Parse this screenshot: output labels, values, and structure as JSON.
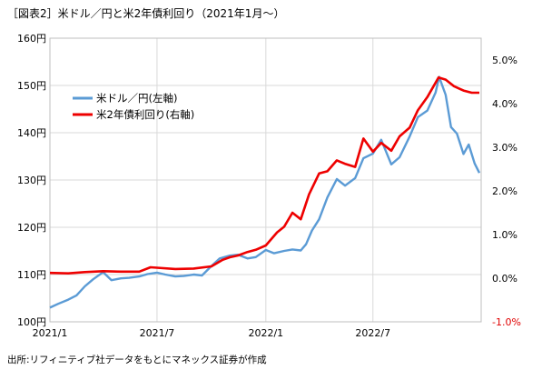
{
  "figure": {
    "title": "［図表2］米ドル／円と米2年債利回り（2021年1月～）",
    "source": "出所:リフィニティブ社データをもとにマネックス証券が作成"
  },
  "chart_data": {
    "type": "line",
    "x_tick_labels": [
      "2021/1",
      "2021/7",
      "2022/1",
      "2022/7"
    ],
    "x_tick_dates": [
      "2021-01-01",
      "2021-07-01",
      "2022-01-01",
      "2022-07-01"
    ],
    "x_range": [
      "2021-01-01",
      "2022-12-31"
    ],
    "y_left": {
      "ylim": [
        100,
        160
      ],
      "ticks": [
        100,
        110,
        120,
        130,
        140,
        150,
        160
      ],
      "tick_labels": [
        "100円",
        "110円",
        "120円",
        "130円",
        "140円",
        "150円",
        "160円"
      ]
    },
    "y_right": {
      "ylim": [
        -1.0,
        5.5
      ],
      "ticks": [
        -1.0,
        0.0,
        1.0,
        2.0,
        3.0,
        4.0,
        5.0
      ],
      "tick_labels": [
        "-1.0%",
        "0.0%",
        "1.0%",
        "2.0%",
        "3.0%",
        "4.0%",
        "5.0%"
      ],
      "negative_color": "#e00000"
    },
    "grid": {
      "horizontal": true,
      "vertical": true,
      "color": "#d9d9d9"
    },
    "legend_position": "upper-left",
    "series": [
      {
        "name": "米ドル／円(左軸)",
        "axis": "left",
        "color": "#5b9bd5",
        "x": [
          "2021-01-01",
          "2021-01-15",
          "2021-02-01",
          "2021-02-15",
          "2021-03-01",
          "2021-03-15",
          "2021-04-01",
          "2021-04-15",
          "2021-05-01",
          "2021-05-15",
          "2021-06-01",
          "2021-06-15",
          "2021-07-01",
          "2021-07-15",
          "2021-08-01",
          "2021-08-15",
          "2021-09-01",
          "2021-09-15",
          "2021-10-01",
          "2021-10-15",
          "2021-11-01",
          "2021-11-15",
          "2021-12-01",
          "2021-12-15",
          "2022-01-01",
          "2022-01-15",
          "2022-02-01",
          "2022-02-15",
          "2022-03-01",
          "2022-03-10",
          "2022-03-20",
          "2022-04-01",
          "2022-04-15",
          "2022-05-01",
          "2022-05-15",
          "2022-06-01",
          "2022-06-15",
          "2022-07-01",
          "2022-07-15",
          "2022-08-01",
          "2022-08-15",
          "2022-09-01",
          "2022-09-15",
          "2022-10-01",
          "2022-10-15",
          "2022-10-21",
          "2022-11-01",
          "2022-11-10",
          "2022-11-20",
          "2022-12-01",
          "2022-12-10",
          "2022-12-20",
          "2022-12-28"
        ],
        "values": [
          103.0,
          103.8,
          104.7,
          105.6,
          107.5,
          109.0,
          110.5,
          108.8,
          109.2,
          109.3,
          109.6,
          110.1,
          110.4,
          110.0,
          109.6,
          109.7,
          110.0,
          109.8,
          111.8,
          113.4,
          114.0,
          114.2,
          113.4,
          113.7,
          115.2,
          114.5,
          115.0,
          115.3,
          115.1,
          116.4,
          119.3,
          121.7,
          126.3,
          130.2,
          128.8,
          130.4,
          134.6,
          135.6,
          138.5,
          133.3,
          134.8,
          139.2,
          143.3,
          144.7,
          148.5,
          151.8,
          148.0,
          141.2,
          139.8,
          135.5,
          137.5,
          133.5,
          131.5
        ]
      },
      {
        "name": "米2年債利回り(右軸)",
        "axis": "right",
        "color": "#ee0000",
        "x": [
          "2021-01-01",
          "2021-02-01",
          "2021-03-01",
          "2021-04-01",
          "2021-05-01",
          "2021-06-01",
          "2021-06-20",
          "2021-07-01",
          "2021-08-01",
          "2021-09-01",
          "2021-10-01",
          "2021-10-20",
          "2021-11-01",
          "2021-11-15",
          "2021-12-01",
          "2021-12-15",
          "2022-01-01",
          "2022-01-20",
          "2022-02-01",
          "2022-02-15",
          "2022-03-01",
          "2022-03-15",
          "2022-04-01",
          "2022-04-15",
          "2022-05-01",
          "2022-05-15",
          "2022-06-01",
          "2022-06-15",
          "2022-07-01",
          "2022-07-15",
          "2022-08-01",
          "2022-08-15",
          "2022-09-01",
          "2022-09-15",
          "2022-10-01",
          "2022-10-20",
          "2022-11-01",
          "2022-11-15",
          "2022-12-01",
          "2022-12-15",
          "2022-12-28"
        ],
        "values": [
          0.12,
          0.11,
          0.14,
          0.16,
          0.15,
          0.15,
          0.25,
          0.24,
          0.21,
          0.22,
          0.27,
          0.42,
          0.48,
          0.52,
          0.6,
          0.65,
          0.75,
          1.05,
          1.18,
          1.5,
          1.35,
          1.92,
          2.4,
          2.45,
          2.7,
          2.62,
          2.55,
          3.2,
          2.9,
          3.1,
          2.92,
          3.25,
          3.45,
          3.85,
          4.15,
          4.6,
          4.55,
          4.4,
          4.3,
          4.25,
          4.25
        ]
      }
    ]
  }
}
